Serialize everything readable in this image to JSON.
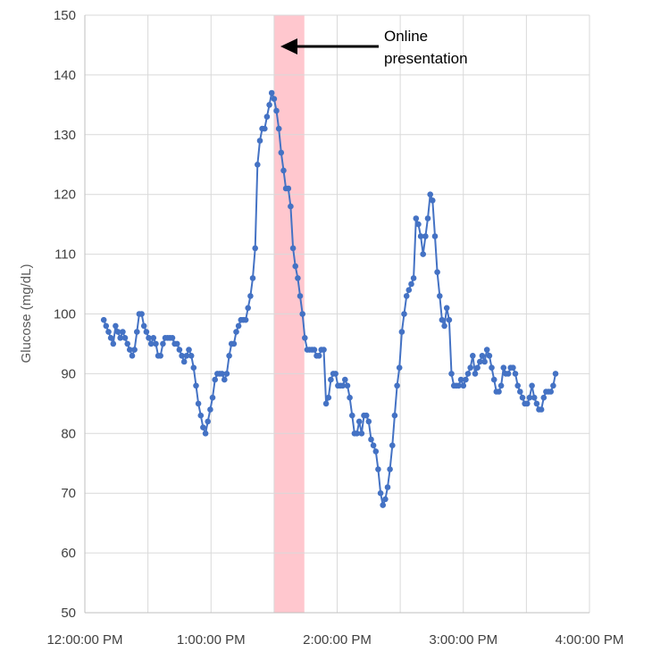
{
  "chart_data": {
    "type": "line",
    "title": "",
    "xlabel": "",
    "ylabel": "Glucose (mg/dL)",
    "ylim": [
      50,
      150
    ],
    "yticks": [
      50,
      60,
      70,
      80,
      90,
      100,
      110,
      120,
      130,
      140,
      150
    ],
    "xlim_hours": [
      12,
      16
    ],
    "xticks": [
      {
        "hour": 12,
        "label": "12:00:00 PM"
      },
      {
        "hour": 13,
        "label": "1:00:00 PM"
      },
      {
        "hour": 14,
        "label": "2:00:00 PM"
      },
      {
        "hour": 15,
        "label": "3:00:00 PM"
      },
      {
        "hour": 16,
        "label": "4:00:00 PM"
      }
    ],
    "grid": {
      "horizontal": true,
      "vertical": true,
      "vertical_every_hours": 0.5
    },
    "colors": {
      "series": "#4472C4",
      "highlight": "#FFC7CE",
      "grid": "#D9D9D9",
      "axis": "#BFBFBF",
      "annotation": "#000000"
    },
    "highlight": {
      "start_hour": 13.5,
      "end_hour": 13.74
    },
    "annotation": {
      "lines": [
        "Online",
        "presentation"
      ]
    },
    "series": [
      {
        "name": "",
        "x_start_hour": 12.15,
        "x_step_hours": 0.01875,
        "values": [
          99,
          98,
          97,
          96,
          95,
          98,
          97,
          96,
          97,
          96,
          95,
          94,
          93,
          94,
          97,
          100,
          100,
          98,
          97,
          96,
          95,
          96,
          95,
          93,
          93,
          95,
          96,
          96,
          96,
          96,
          95,
          95,
          94,
          93,
          92,
          93,
          94,
          93,
          91,
          88,
          85,
          83,
          81,
          80,
          82,
          84,
          86,
          89,
          90,
          90,
          90,
          89,
          90,
          93,
          95,
          95,
          97,
          98,
          99,
          99,
          99,
          101,
          103,
          106,
          111,
          125,
          129,
          131,
          131,
          133,
          135,
          137,
          136,
          134,
          131,
          127,
          124,
          121,
          121,
          118,
          111,
          108,
          106,
          103,
          100,
          96,
          94,
          94,
          94,
          94,
          93,
          93,
          94,
          94,
          85,
          86,
          89,
          90,
          90,
          88,
          88,
          88,
          89,
          88,
          86,
          83,
          80,
          80,
          82,
          80,
          83,
          83,
          82,
          79,
          78,
          77,
          74,
          70,
          68,
          69,
          71,
          74,
          78,
          83,
          88,
          91,
          97,
          100,
          103,
          104,
          105,
          106,
          116,
          115,
          113,
          110,
          113,
          116,
          120,
          119,
          113,
          107,
          103,
          99,
          98,
          101,
          99,
          90,
          88,
          88,
          88,
          89,
          88,
          89,
          90,
          91,
          93,
          90,
          91,
          92,
          93,
          92,
          94,
          93,
          91,
          89,
          87,
          87,
          88,
          91,
          90,
          90,
          91,
          91,
          90,
          88,
          87,
          86,
          85,
          85,
          86,
          88,
          86,
          85,
          84,
          84,
          86,
          87,
          87,
          87,
          88,
          90
        ]
      }
    ]
  }
}
